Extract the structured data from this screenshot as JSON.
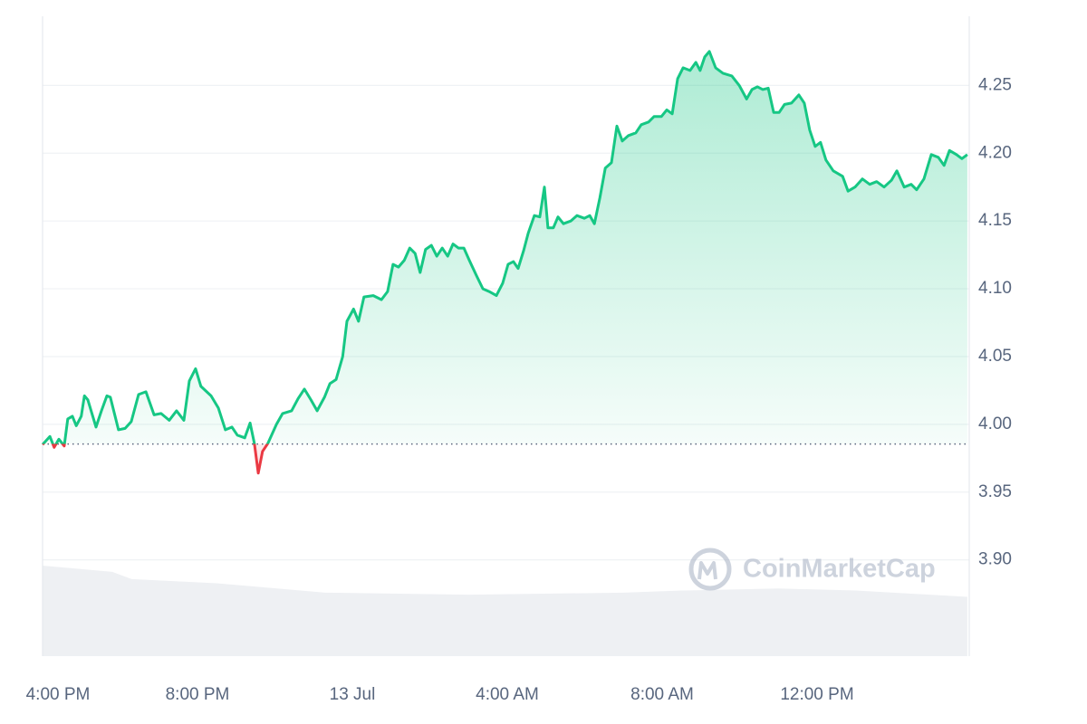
{
  "chart_data": {
    "type": "line",
    "watermark": "CoinMarketCap",
    "x": [
      0,
      0.19,
      0.3,
      0.42,
      0.56,
      0.65,
      0.77,
      0.87,
      1.0,
      1.08,
      1.17,
      1.38,
      1.52,
      1.66,
      1.75,
      1.96,
      2.13,
      2.29,
      2.48,
      2.67,
      2.88,
      3.06,
      3.27,
      3.46,
      3.65,
      3.79,
      3.95,
      4.09,
      4.35,
      4.54,
      4.72,
      4.89,
      5.03,
      5.22,
      5.36,
      5.47,
      5.57,
      5.68,
      5.82,
      6.04,
      6.2,
      6.43,
      6.6,
      6.76,
      6.93,
      7.09,
      7.28,
      7.42,
      7.58,
      7.75,
      7.86,
      8.03,
      8.16,
      8.3,
      8.54,
      8.75,
      8.91,
      9.05,
      9.19,
      9.34,
      9.48,
      9.62,
      9.75,
      9.89,
      10.04,
      10.18,
      10.32,
      10.46,
      10.6,
      10.74,
      10.88,
      11.02,
      11.2,
      11.37,
      11.53,
      11.72,
      11.88,
      12.02,
      12.16,
      12.28,
      12.42,
      12.54,
      12.7,
      12.84,
      12.96,
      13.05,
      13.19,
      13.31,
      13.45,
      13.64,
      13.8,
      13.99,
      14.13,
      14.25,
      14.39,
      14.53,
      14.69,
      14.83,
      14.97,
      15.13,
      15.32,
      15.46,
      15.65,
      15.79,
      15.98,
      16.12,
      16.26,
      16.4,
      16.54,
      16.72,
      16.87,
      16.98,
      17.1,
      17.22,
      17.38,
      17.57,
      17.8,
      17.99,
      18.18,
      18.32,
      18.46,
      18.6,
      18.74,
      18.88,
      19.02,
      19.16,
      19.34,
      19.53,
      19.67,
      19.81,
      19.95,
      20.09,
      20.23,
      20.42,
      20.66,
      20.8,
      20.98,
      21.17,
      21.36,
      21.54,
      21.73,
      21.92,
      22.06,
      22.25,
      22.43,
      22.57,
      22.76,
      22.95,
      23.13,
      23.28,
      23.42,
      23.6,
      23.74,
      23.88
    ],
    "series": [
      {
        "color": "#16c784",
        "values": [
          3.985,
          3.991,
          3.983,
          3.989,
          3.984,
          4.004,
          4.006,
          3.999,
          4.006,
          4.021,
          4.018,
          3.998,
          4.01,
          4.021,
          4.02,
          3.996,
          3.997,
          4.002,
          4.022,
          4.024,
          4.007,
          4.008,
          4.003,
          4.01,
          4.003,
          4.032,
          4.041,
          4.028,
          4.021,
          4.012,
          3.996,
          3.998,
          3.992,
          3.99,
          4.001,
          3.986,
          3.964,
          3.98,
          3.986,
          4.0,
          4.008,
          4.01,
          4.019,
          4.026,
          4.018,
          4.01,
          4.02,
          4.03,
          4.033,
          4.05,
          4.076,
          4.085,
          4.076,
          4.094,
          4.095,
          4.092,
          4.098,
          4.118,
          4.116,
          4.121,
          4.13,
          4.126,
          4.112,
          4.129,
          4.132,
          4.124,
          4.13,
          4.124,
          4.133,
          4.13,
          4.13,
          4.121,
          4.11,
          4.1,
          4.098,
          4.095,
          4.104,
          4.118,
          4.12,
          4.115,
          4.128,
          4.141,
          4.154,
          4.153,
          4.175,
          4.145,
          4.145,
          4.153,
          4.148,
          4.15,
          4.154,
          4.152,
          4.154,
          4.148,
          4.167,
          4.189,
          4.193,
          4.22,
          4.209,
          4.213,
          4.215,
          4.221,
          4.223,
          4.227,
          4.227,
          4.232,
          4.229,
          4.255,
          4.263,
          4.261,
          4.267,
          4.261,
          4.271,
          4.275,
          4.263,
          4.259,
          4.257,
          4.25,
          4.24,
          4.247,
          4.249,
          4.247,
          4.248,
          4.23,
          4.23,
          4.236,
          4.237,
          4.243,
          4.237,
          4.217,
          4.205,
          4.208,
          4.195,
          4.187,
          4.183,
          4.172,
          4.175,
          4.181,
          4.177,
          4.179,
          4.175,
          4.18,
          4.187,
          4.175,
          4.177,
          4.173,
          4.181,
          4.199,
          4.197,
          4.191,
          4.202,
          4.199,
          4.196,
          4.199
        ]
      }
    ],
    "below_color": "#ea3943",
    "reference_value": 3.9855,
    "volume": {
      "color": "#eef0f3",
      "x": [
        0,
        1.8,
        2.3,
        4.5,
        7.3,
        11,
        15,
        16.5,
        19,
        21,
        23.88
      ],
      "values": [
        87,
        81,
        74,
        70,
        61,
        59,
        61,
        63,
        65,
        63,
        57
      ],
      "ylim": [
        0,
        100
      ]
    },
    "xlim": [
      0,
      23.93
    ],
    "xticks": [
      {
        "value": 0,
        "label": "4:00 PM"
      },
      {
        "value": 4,
        "label": "8:00 PM"
      },
      {
        "value": 8,
        "label": "13 Jul"
      },
      {
        "value": 12,
        "label": "4:00 AM"
      },
      {
        "value": 16,
        "label": "8:00 AM"
      },
      {
        "value": 20,
        "label": "12:00 PM"
      }
    ],
    "ylim": [
      3.829,
      4.301
    ],
    "yticks": [
      {
        "value": 3.9,
        "label": "3.90"
      },
      3.95,
      {
        "value": 4.0,
        "label": "4.00"
      },
      4.05,
      {
        "value": 4.1,
        "label": "4.10"
      },
      4.15,
      {
        "value": 4.2,
        "label": "4.20"
      },
      4.25
    ],
    "grid": true
  }
}
